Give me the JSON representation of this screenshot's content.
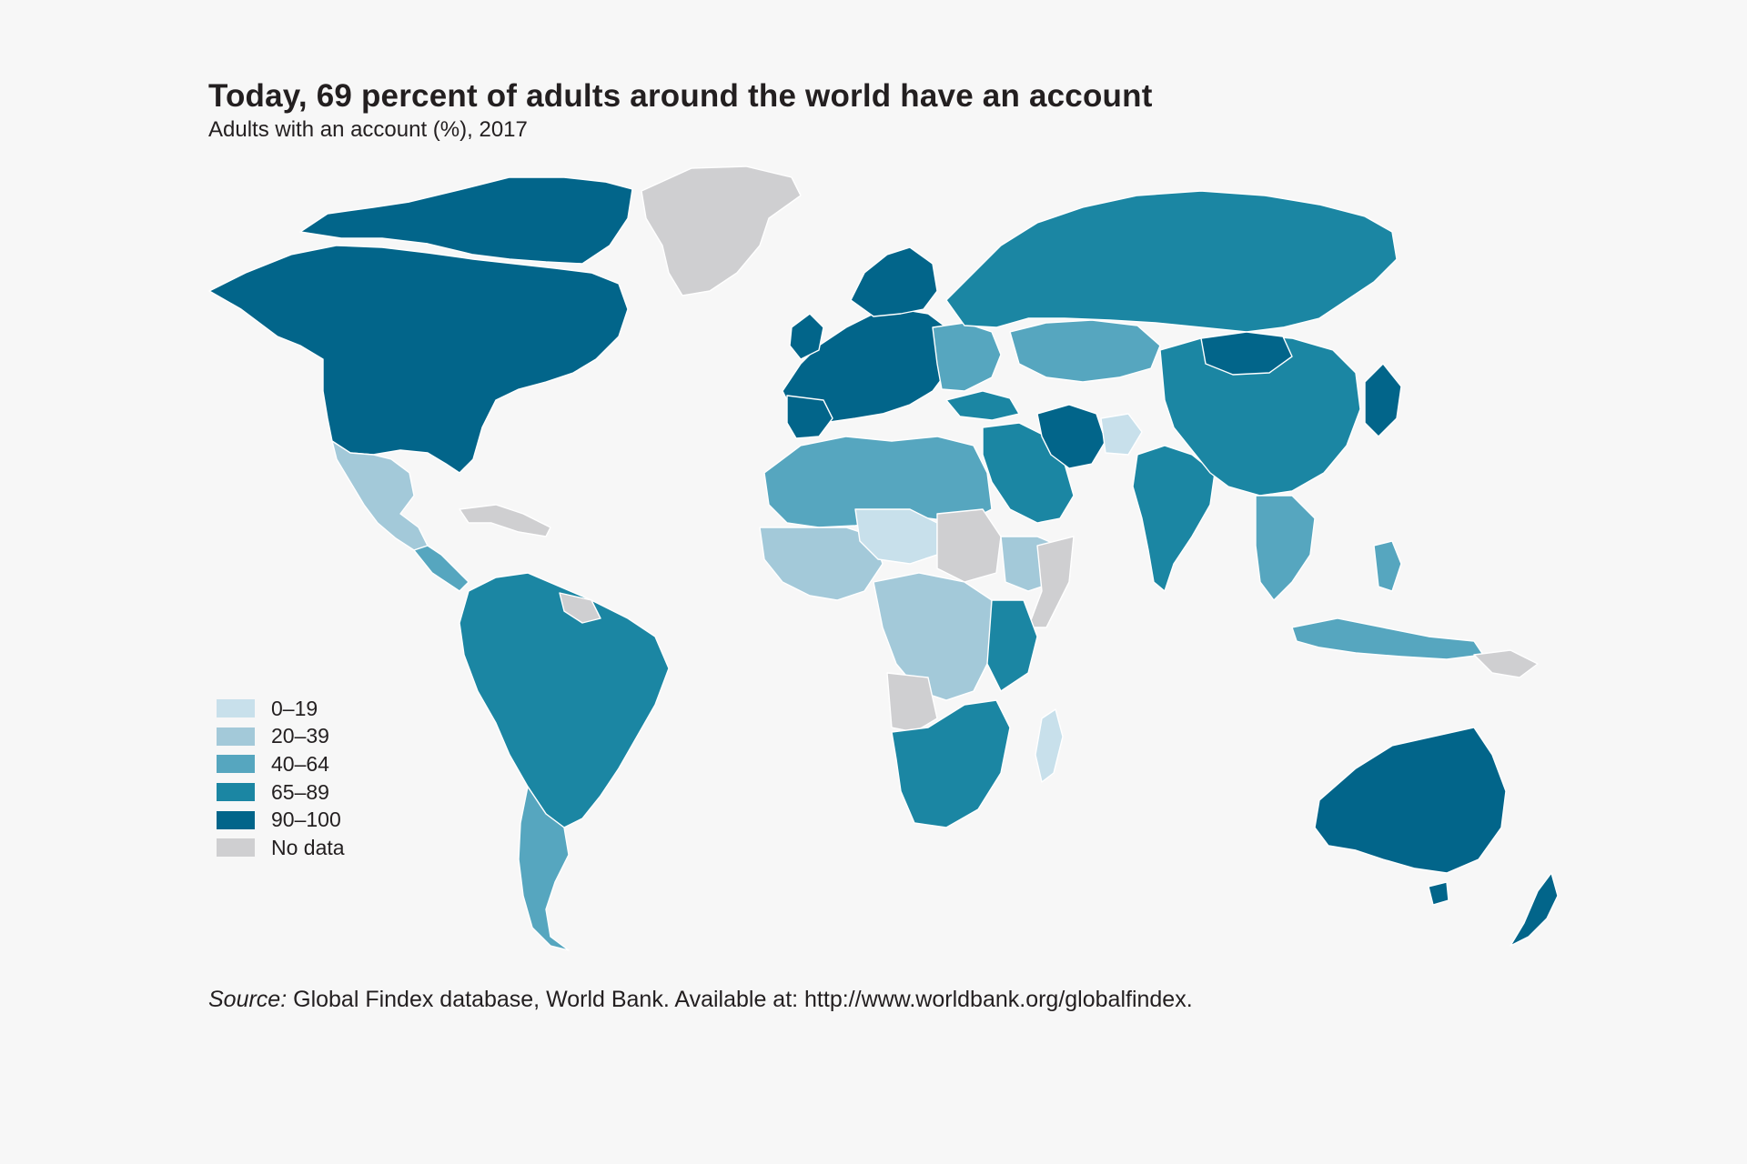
{
  "title": "Today, 69 percent of adults around the world have an account",
  "subtitle": "Adults with an account (%), 2017",
  "legend": [
    {
      "label": "0–19",
      "color": "#c8e0eb"
    },
    {
      "label": "20–39",
      "color": "#a3c9d9"
    },
    {
      "label": "40–64",
      "color": "#56a6bf"
    },
    {
      "label": "65–89",
      "color": "#1b86a3"
    },
    {
      "label": "90–100",
      "color": "#02658a"
    },
    {
      "label": "No data",
      "color": "#cfcfd1"
    }
  ],
  "source": {
    "prefix": "Source:",
    "text": " Global Findex database, World Bank. Available at: http://www.worldbank.org/globalfindex."
  }
}
